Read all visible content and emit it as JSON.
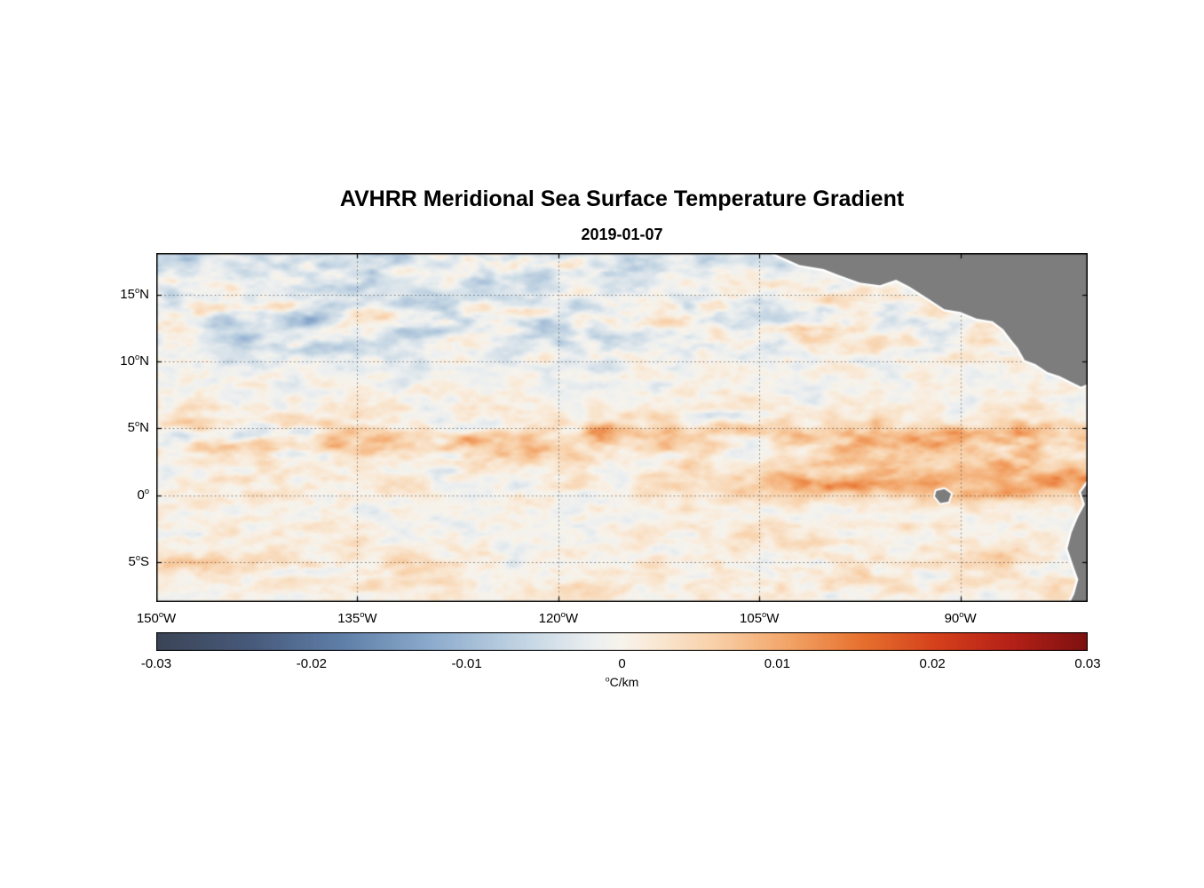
{
  "chart_data": {
    "type": "heatmap",
    "title": "AVHRR Meridional Sea Surface Temperature Gradient",
    "subtitle": "2019-01-07",
    "units": {
      "sup": "o",
      "main": "C/km",
      "plain": "°C/km"
    },
    "colorbar": {
      "min": -0.03,
      "max": 0.03,
      "orientation": "horizontal",
      "tick_labels": [
        "-0.03",
        "-0.02",
        "-0.01",
        "0",
        "0.01",
        "0.02",
        "0.03"
      ],
      "tick_values": [
        -0.03,
        -0.02,
        -0.01,
        0,
        0.01,
        0.02,
        0.03
      ],
      "stops": [
        {
          "t": 0.0,
          "color": "#3b4456"
        },
        {
          "t": 0.1,
          "color": "#47597a"
        },
        {
          "t": 0.2,
          "color": "#5f7fa8"
        },
        {
          "t": 0.3,
          "color": "#8fadce"
        },
        {
          "t": 0.4,
          "color": "#c6d7e4"
        },
        {
          "t": 0.47,
          "color": "#eceff0"
        },
        {
          "t": 0.5,
          "color": "#f7f3ec"
        },
        {
          "t": 0.53,
          "color": "#f9ead8"
        },
        {
          "t": 0.6,
          "color": "#f8d0a8"
        },
        {
          "t": 0.68,
          "color": "#f2a366"
        },
        {
          "t": 0.76,
          "color": "#e66f2d"
        },
        {
          "t": 0.84,
          "color": "#d43f1b"
        },
        {
          "t": 0.92,
          "color": "#b32017"
        },
        {
          "t": 1.0,
          "color": "#7e1010"
        }
      ]
    },
    "map": {
      "lon_range_degW": [
        150,
        80.5
      ],
      "lat_range_degN": [
        -8,
        18.1
      ],
      "degree_symbol": "o",
      "grid_style": "dotted",
      "land_color": "#7d7d7d",
      "coast_color": "#ffffff",
      "xticks": [
        {
          "text": "150",
          "dir": "W",
          "lonW": 150
        },
        {
          "text": "135",
          "dir": "W",
          "lonW": 135
        },
        {
          "text": "120",
          "dir": "W",
          "lonW": 120
        },
        {
          "text": "105",
          "dir": "W",
          "lonW": 105
        },
        {
          "text": "90",
          "dir": "W",
          "lonW": 90
        }
      ],
      "yticks": [
        {
          "text": "15",
          "dir": "N",
          "lat": 15
        },
        {
          "text": "10",
          "dir": "N",
          "lat": 10
        },
        {
          "text": "5",
          "dir": "N",
          "lat": 5
        },
        {
          "text": "0",
          "dir": "",
          "lat": 0
        },
        {
          "text": "5",
          "dir": "S",
          "lat": -5
        }
      ],
      "land_polygons": {
        "central_america": [
          [
            104.0,
            18.1
          ],
          [
            102.0,
            17.2
          ],
          [
            100.2,
            16.9
          ],
          [
            99.2,
            16.5
          ],
          [
            97.5,
            15.9
          ],
          [
            96.0,
            15.7
          ],
          [
            94.8,
            16.1
          ],
          [
            93.8,
            15.6
          ],
          [
            92.4,
            14.7
          ],
          [
            91.2,
            13.9
          ],
          [
            90.0,
            13.7
          ],
          [
            88.8,
            13.2
          ],
          [
            87.6,
            13.0
          ],
          [
            86.8,
            12.4
          ],
          [
            86.2,
            11.6
          ],
          [
            85.7,
            11.0
          ],
          [
            85.2,
            10.1
          ],
          [
            84.4,
            9.8
          ],
          [
            83.5,
            9.2
          ],
          [
            82.6,
            8.9
          ],
          [
            81.8,
            8.5
          ],
          [
            81.0,
            8.1
          ],
          [
            80.5,
            8.3
          ],
          [
            80.5,
            18.1
          ]
        ],
        "galapagos": [
          [
            91.8,
            0.3
          ],
          [
            91.2,
            0.45
          ],
          [
            90.7,
            0.1
          ],
          [
            90.9,
            -0.5
          ],
          [
            91.5,
            -0.6
          ],
          [
            91.9,
            -0.1
          ]
        ],
        "south_america": [
          [
            80.5,
            0.9
          ],
          [
            81.0,
            0.2
          ],
          [
            80.7,
            -0.7
          ],
          [
            81.2,
            -1.6
          ],
          [
            81.7,
            -2.8
          ],
          [
            82.0,
            -4.0
          ],
          [
            81.6,
            -5.2
          ],
          [
            81.2,
            -6.3
          ],
          [
            81.5,
            -7.4
          ],
          [
            81.8,
            -8.0
          ],
          [
            80.5,
            -8.0
          ]
        ]
      }
    },
    "visible_features": [
      "Dark blue (negative gradient) meandering filaments between 9N and 18N, strongest west of 115W",
      "Orange-red (positive gradient) zonal filaments along 3N-6N across the whole basin",
      "Strong saturated red equatorial front near 0N-2N east of 110W extending to the coast",
      "Pale near-zero cream/light-blue mottled background elsewhere, including south of 2S",
      "Orange diagonal streaks near 5S between 85W and 95W",
      "Gray land: Mexico and Central America in upper right, Galapagos Islands near 91W 0N, South American coast in lower right, all outlined in white"
    ]
  }
}
